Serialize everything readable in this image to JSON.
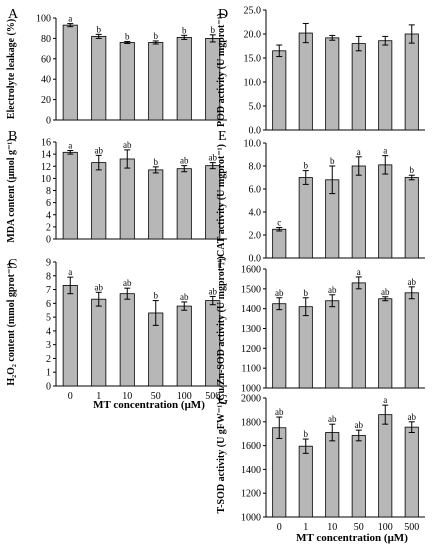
{
  "figure": {
    "x_title": "MT concentration (μM)"
  },
  "chart_data": [
    {
      "panel": "A",
      "type": "bar",
      "ylabel": "Electrolyte leakage (%)",
      "categories": [
        "0",
        "1",
        "10",
        "50",
        "100",
        "500"
      ],
      "values": [
        93,
        82,
        76,
        76,
        81,
        80
      ],
      "errors": [
        1.5,
        2,
        1,
        1.5,
        2,
        3.5
      ],
      "letters": [
        "a",
        "b",
        "b",
        "b",
        "b",
        "b"
      ],
      "ylim": [
        0,
        100
      ],
      "yticks": [
        0,
        20,
        40,
        60,
        80,
        100
      ],
      "tick_labels": [
        "0",
        "20",
        "40",
        "60",
        "80",
        "100"
      ]
    },
    {
      "panel": "B",
      "type": "bar",
      "ylabel": "MDA content (μmol g⁻¹)",
      "categories": [
        "0",
        "1",
        "10",
        "50",
        "100",
        "500"
      ],
      "values": [
        14.3,
        12.6,
        13.2,
        11.4,
        11.6,
        12.1
      ],
      "errors": [
        0.3,
        1.2,
        1.5,
        0.5,
        0.5,
        0.5
      ],
      "letters": [
        "a",
        "ab",
        "ab",
        "b",
        "ab",
        "ab"
      ],
      "ylim": [
        0,
        16
      ],
      "yticks": [
        0,
        2,
        4,
        6,
        8,
        10,
        12,
        14,
        16
      ],
      "tick_labels": [
        "0",
        "2",
        "4",
        "6",
        "8",
        "10",
        "12",
        "14",
        "16"
      ]
    },
    {
      "panel": "C",
      "type": "bar",
      "ylabel": "H₂O₂ content (mmol gprot⁻¹)",
      "categories": [
        "0",
        "1",
        "10",
        "50",
        "100",
        "500"
      ],
      "values": [
        7.3,
        6.3,
        6.7,
        5.3,
        5.8,
        6.2
      ],
      "errors": [
        0.6,
        0.5,
        0.4,
        0.9,
        0.3,
        0.3
      ],
      "letters": [
        "a",
        "ab",
        "ab",
        "b",
        "ab",
        "ab"
      ],
      "ylim": [
        0,
        9
      ],
      "yticks": [
        0,
        1,
        2,
        3,
        4,
        5,
        6,
        7,
        8,
        9
      ],
      "tick_labels": [
        "0",
        "1",
        "2",
        "3",
        "4",
        "5",
        "6",
        "7",
        "8",
        "9"
      ]
    },
    {
      "panel": "D",
      "type": "bar",
      "ylabel": "POD activity (U mgprot⁻¹)",
      "categories": [
        "0",
        "1",
        "10",
        "50",
        "100",
        "500"
      ],
      "values": [
        16.5,
        20.2,
        19.2,
        18.0,
        18.6,
        20.0
      ],
      "errors": [
        1.2,
        2.0,
        0.5,
        1.5,
        0.9,
        1.9
      ],
      "letters": [
        "",
        "",
        "",
        "",
        "",
        ""
      ],
      "ylim": [
        0,
        25
      ],
      "yticks": [
        0,
        5,
        10,
        15,
        20,
        25
      ],
      "tick_labels": [
        "0.0",
        "5.0",
        "10.0",
        "15.0",
        "20.0",
        "25.0"
      ]
    },
    {
      "panel": "E",
      "type": "bar",
      "ylabel": "CAT activity (U mgprot⁻¹)",
      "categories": [
        "0",
        "1",
        "10",
        "50",
        "100",
        "500"
      ],
      "values": [
        2.5,
        7.0,
        6.8,
        8.0,
        8.1,
        7.0
      ],
      "errors": [
        0.15,
        0.6,
        1.2,
        0.8,
        0.8,
        0.2
      ],
      "letters": [
        "c",
        "b",
        "b",
        "a",
        "a",
        "b"
      ],
      "ylim": [
        0,
        10
      ],
      "yticks": [
        0,
        2,
        4,
        6,
        8,
        10
      ],
      "tick_labels": [
        "0.0",
        "2.0",
        "4.0",
        "6.0",
        "8.0",
        "10.0"
      ]
    },
    {
      "panel": "F",
      "type": "bar",
      "ylabel": "Cu/Zn-SOD activity (U mgprot⁻¹)",
      "categories": [
        "0",
        "1",
        "10",
        "50",
        "100",
        "500"
      ],
      "values": [
        1425,
        1410,
        1440,
        1530,
        1450,
        1480
      ],
      "errors": [
        30,
        45,
        30,
        30,
        10,
        30
      ],
      "letters": [
        "ab",
        "b",
        "ab",
        "a",
        "ab",
        "ab"
      ],
      "ylim": [
        1000,
        1600
      ],
      "yticks": [
        1000,
        1100,
        1200,
        1300,
        1400,
        1500,
        1600
      ],
      "tick_labels": [
        "1000",
        "1100",
        "1200",
        "1300",
        "1400",
        "1500",
        "1600"
      ]
    },
    {
      "panel": "G",
      "type": "bar",
      "ylabel": "T-SOD activity (U gFW⁻¹)",
      "categories": [
        "0",
        "1",
        "10",
        "50",
        "100",
        "500"
      ],
      "values": [
        1750,
        1595,
        1710,
        1685,
        1860,
        1755
      ],
      "errors": [
        90,
        60,
        70,
        45,
        80,
        45
      ],
      "letters": [
        "ab",
        "b",
        "ab",
        "ab",
        "a",
        "ab"
      ],
      "ylim": [
        1000,
        2000
      ],
      "yticks": [
        1000,
        1200,
        1400,
        1600,
        1800,
        2000
      ],
      "tick_labels": [
        "1000",
        "1200",
        "1400",
        "1600",
        "1800",
        "2000"
      ]
    }
  ]
}
